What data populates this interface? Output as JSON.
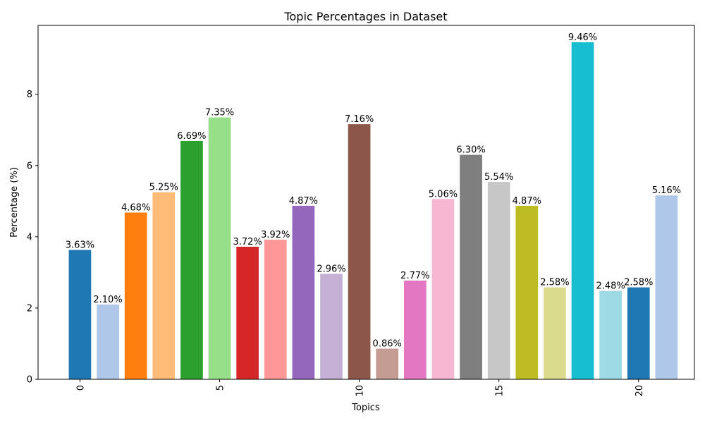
{
  "chart_data": {
    "type": "bar",
    "title": "Topic Percentages in Dataset",
    "xlabel": "Topics",
    "ylabel": "Percentage (%)",
    "categories": [
      0,
      1,
      2,
      3,
      4,
      5,
      6,
      7,
      8,
      9,
      10,
      11,
      12,
      13,
      14,
      15,
      16,
      17,
      18,
      19,
      20,
      21
    ],
    "values": [
      3.63,
      2.1,
      4.68,
      5.25,
      6.69,
      7.35,
      3.72,
      3.92,
      4.87,
      2.96,
      7.16,
      0.86,
      2.77,
      5.06,
      6.3,
      5.54,
      4.87,
      2.58,
      9.46,
      2.48,
      2.58,
      5.16
    ],
    "value_labels": [
      "3.63%",
      "2.10%",
      "4.68%",
      "5.25%",
      "6.69%",
      "7.35%",
      "3.72%",
      "3.92%",
      "4.87%",
      "2.96%",
      "7.16%",
      "0.86%",
      "2.77%",
      "5.06%",
      "6.30%",
      "5.54%",
      "4.87%",
      "2.58%",
      "9.46%",
      "2.48%",
      "2.58%",
      "5.16%"
    ],
    "colors": [
      "#1f77b4",
      "#aec7e8",
      "#ff7f0e",
      "#ffbb78",
      "#2ca02c",
      "#98df8a",
      "#d62728",
      "#ff9896",
      "#9467bd",
      "#c5b0d5",
      "#8c564b",
      "#c49c94",
      "#e377c2",
      "#f7b6d2",
      "#7f7f7f",
      "#c7c7c7",
      "#bcbd22",
      "#dbdb8d",
      "#17becf",
      "#9edae5",
      "#1f77b4",
      "#aec7e8"
    ],
    "xticks": [
      "0",
      "5",
      "10",
      "15",
      "20"
    ],
    "xtick_values": [
      0,
      5,
      10,
      15,
      20
    ],
    "yticks": [
      "0",
      "2",
      "4",
      "6",
      "8"
    ],
    "ytick_values": [
      0,
      2,
      4,
      6,
      8
    ],
    "xlim": [
      -1.5,
      22.0
    ],
    "ylim": [
      0,
      9.933
    ],
    "grid": false,
    "legend": "none"
  }
}
